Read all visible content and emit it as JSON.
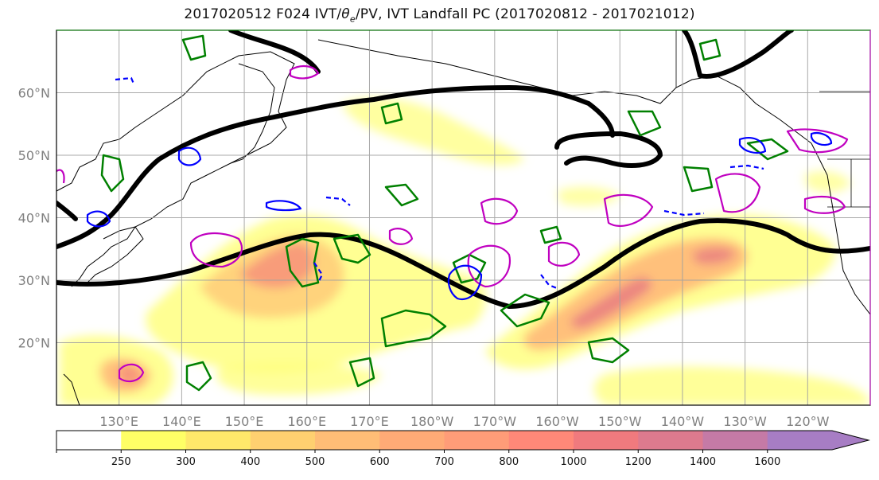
{
  "title_main": "2017020512 F024 IVT/",
  "title_theta": "θ",
  "title_theta_sub": "e",
  "title_rest": "/PV, IVT Landfall PC (2017020812 - 2017021012)",
  "map": {
    "extent": {
      "lon_min": 120,
      "lon_max": 250,
      "lat_min": 10,
      "lat_max": 70
    },
    "lat_ticks": [
      {
        "value": 20,
        "label": "20°N"
      },
      {
        "value": 30,
        "label": "30°N"
      },
      {
        "value": 40,
        "label": "40°N"
      },
      {
        "value": 50,
        "label": "50°N"
      },
      {
        "value": 60,
        "label": "60°N"
      }
    ],
    "lon_ticks": [
      {
        "value": 130,
        "label": "130°E"
      },
      {
        "value": 140,
        "label": "140°E"
      },
      {
        "value": 150,
        "label": "150°E"
      },
      {
        "value": 160,
        "label": "160°E"
      },
      {
        "value": 170,
        "label": "170°E"
      },
      {
        "value": 180,
        "label": "180°W"
      },
      {
        "value": 190,
        "label": "170°W"
      },
      {
        "value": 200,
        "label": "160°W"
      },
      {
        "value": 210,
        "label": "150°W"
      },
      {
        "value": 220,
        "label": "140°W"
      },
      {
        "value": 230,
        "label": "130°W"
      },
      {
        "value": 240,
        "label": "120°W"
      }
    ],
    "grid": true,
    "colors": {
      "ivt_contour_black": "#000000",
      "theta_e_green": "#008000",
      "pv_magenta": "#c000c0",
      "pv_blue": "#0000ff",
      "grid": "#a0a0a0",
      "coast": "#000000"
    }
  },
  "colorbar": {
    "levels": [
      {
        "label": "250",
        "color": "#ffff66"
      },
      {
        "label": "300",
        "color": "#ffe86a"
      },
      {
        "label": "400",
        "color": "#ffd070"
      },
      {
        "label": "500",
        "color": "#ffbd76"
      },
      {
        "label": "600",
        "color": "#ffaa76"
      },
      {
        "label": "700",
        "color": "#ff9c78"
      },
      {
        "label": "800",
        "color": "#ff8878"
      },
      {
        "label": "1000",
        "color": "#f07a7e"
      },
      {
        "label": "1200",
        "color": "#dd7a8e"
      },
      {
        "label": "1400",
        "color": "#c57aa6"
      },
      {
        "label": "1600",
        "color": "#a77dc4"
      }
    ],
    "under_color": "#ffffff"
  }
}
